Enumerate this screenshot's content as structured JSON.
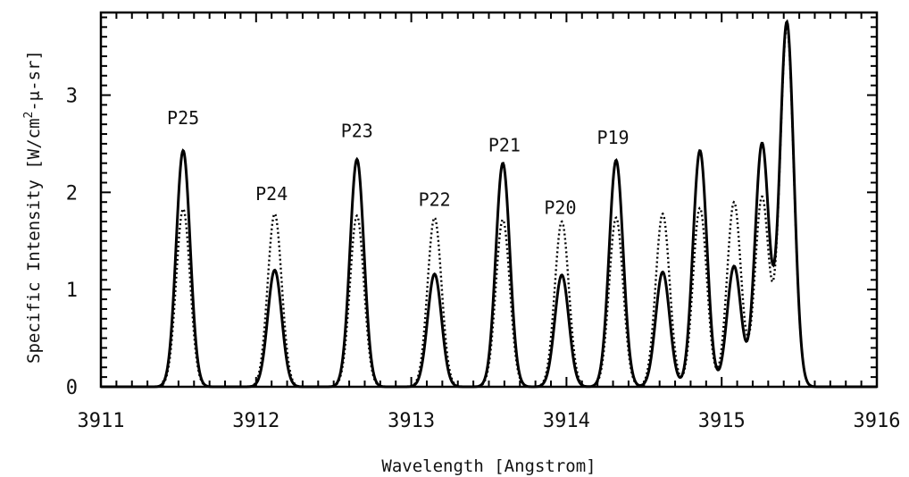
{
  "chart_data": {
    "type": "line",
    "xlabel": "Wavelength [Angstrom]",
    "ylabel_parts": {
      "main": "Specific Intensity [W/cm",
      "sup": "2",
      "rest": "-μ-sr]"
    },
    "xlim": [
      3911,
      3916
    ],
    "ylim": [
      0,
      3.85
    ],
    "x_ticks": [
      3911,
      3912,
      3913,
      3914,
      3915,
      3916
    ],
    "y_ticks": [
      0,
      1,
      2,
      3
    ],
    "x_minor_step": 0.1,
    "y_minor_step": 0.1,
    "line_width_angstrom": 0.045,
    "grid": false,
    "legend": "none",
    "series": [
      {
        "style": "solid",
        "color": "#000000",
        "peaks": [
          {
            "x": 3911.53,
            "y": 2.43
          },
          {
            "x": 3912.12,
            "y": 1.2
          },
          {
            "x": 3912.65,
            "y": 2.34
          },
          {
            "x": 3913.15,
            "y": 1.16
          },
          {
            "x": 3913.59,
            "y": 2.3
          },
          {
            "x": 3913.97,
            "y": 1.15
          },
          {
            "x": 3914.32,
            "y": 2.33
          },
          {
            "x": 3914.62,
            "y": 1.18
          },
          {
            "x": 3914.86,
            "y": 2.43
          },
          {
            "x": 3915.08,
            "y": 1.24
          },
          {
            "x": 3915.26,
            "y": 2.5
          },
          {
            "x": 3915.42,
            "y": 3.75
          }
        ]
      },
      {
        "style": "dotted",
        "color": "#000000",
        "peaks": [
          {
            "x": 3911.53,
            "y": 1.83
          },
          {
            "x": 3912.12,
            "y": 1.78
          },
          {
            "x": 3912.65,
            "y": 1.76
          },
          {
            "x": 3913.15,
            "y": 1.74
          },
          {
            "x": 3913.59,
            "y": 1.72
          },
          {
            "x": 3913.97,
            "y": 1.7
          },
          {
            "x": 3914.32,
            "y": 1.74
          },
          {
            "x": 3914.62,
            "y": 1.78
          },
          {
            "x": 3914.86,
            "y": 1.84
          },
          {
            "x": 3915.08,
            "y": 1.9
          },
          {
            "x": 3915.26,
            "y": 1.95
          },
          {
            "x": 3915.42,
            "y": 3.7
          }
        ]
      }
    ],
    "annotations": [
      {
        "text": "P25",
        "x": 3911.53,
        "y": 2.7
      },
      {
        "text": "P24",
        "x": 3912.1,
        "y": 1.92
      },
      {
        "text": "P23",
        "x": 3912.65,
        "y": 2.57
      },
      {
        "text": "P22",
        "x": 3913.15,
        "y": 1.86
      },
      {
        "text": "P21",
        "x": 3913.6,
        "y": 2.42
      },
      {
        "text": "P20",
        "x": 3913.96,
        "y": 1.78
      },
      {
        "text": "P19",
        "x": 3914.3,
        "y": 2.5
      }
    ]
  }
}
